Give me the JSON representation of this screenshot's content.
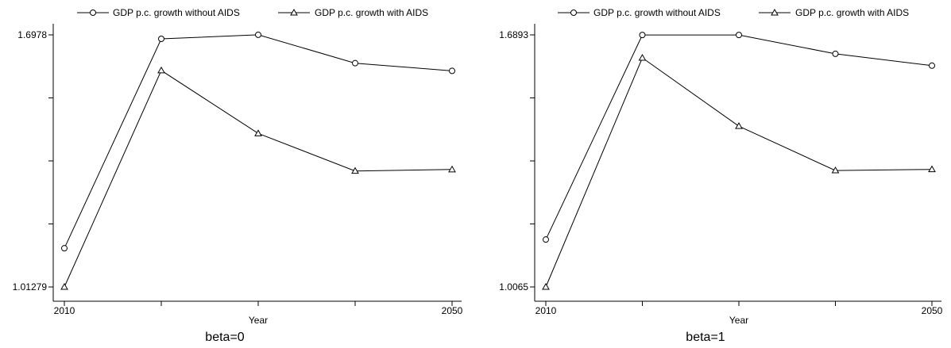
{
  "chart_data": [
    {
      "type": "line",
      "title": "beta=0",
      "xlabel": "Year",
      "ylabel": "",
      "x": [
        2010,
        2020,
        2030,
        2040,
        2050
      ],
      "x_tick_labels": [
        "2010",
        "",
        "",
        "",
        "2050"
      ],
      "ylim": [
        1.01279,
        1.6978
      ],
      "y_tick_labels": [
        "1.6978",
        "",
        "",
        "",
        "1.01279"
      ],
      "grid": false,
      "legend_position": "top",
      "series": [
        {
          "name": "GDP p.c. growth without AIDS",
          "marker": "circle",
          "values": [
            1.118,
            1.687,
            1.698,
            1.621,
            1.6
          ]
        },
        {
          "name": "GDP p.c. growth with AIDS",
          "marker": "triangle",
          "values": [
            1.0128,
            1.601,
            1.43,
            1.328,
            1.332
          ]
        }
      ]
    },
    {
      "type": "line",
      "title": "beta=1",
      "xlabel": "Year",
      "ylabel": "",
      "x": [
        2010,
        2020,
        2030,
        2040,
        2050
      ],
      "x_tick_labels": [
        "2010",
        "",
        "",
        "",
        "2050"
      ],
      "ylim": [
        1.0065,
        1.6893
      ],
      "y_tick_labels": [
        "1.6893",
        "",
        "",
        "",
        "1.0065"
      ],
      "grid": false,
      "legend_position": "top",
      "series": [
        {
          "name": "GDP p.c. growth without AIDS",
          "marker": "circle",
          "values": [
            1.135,
            1.689,
            1.689,
            1.638,
            1.606
          ]
        },
        {
          "name": "GDP p.c. growth with AIDS",
          "marker": "triangle",
          "values": [
            1.0065,
            1.627,
            1.442,
            1.322,
            1.325
          ]
        }
      ]
    }
  ]
}
